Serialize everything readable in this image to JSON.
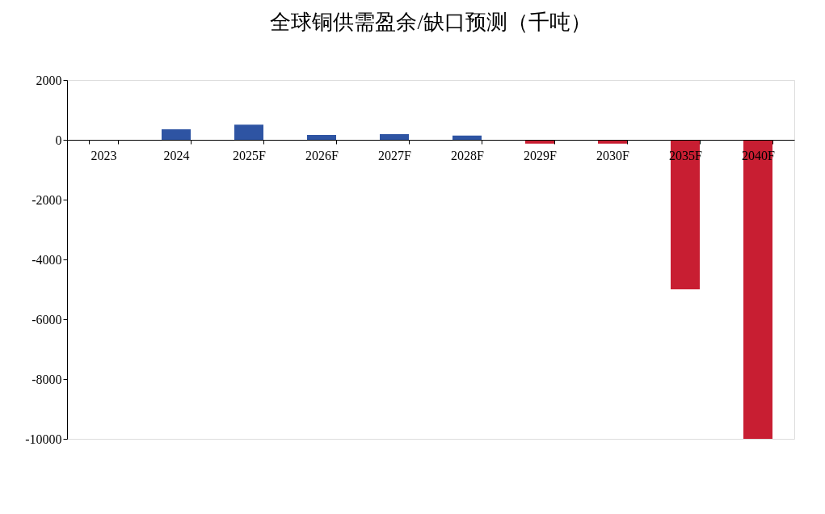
{
  "chart_data": {
    "type": "bar",
    "title": "全球铜供需盈余/缺口预测（千吨）",
    "categories": [
      "2023",
      "2024",
      "2025F",
      "2026F",
      "2027F",
      "2028F",
      "2029F",
      "2030F",
      "2035F",
      "2040F"
    ],
    "values": [
      0,
      350,
      510,
      160,
      190,
      140,
      -130,
      -130,
      -5000,
      -10000
    ],
    "colors": [
      "#2e54a3",
      "#2e54a3",
      "#2e54a3",
      "#2e54a3",
      "#2e54a3",
      "#2e54a3",
      "#c81e32",
      "#c81e32",
      "#c81e32",
      "#c81e32"
    ],
    "ylim": [
      -10000,
      2000
    ],
    "yticks": [
      -10000,
      -8000,
      -6000,
      -4000,
      -2000,
      0,
      2000
    ],
    "grid": false
  }
}
